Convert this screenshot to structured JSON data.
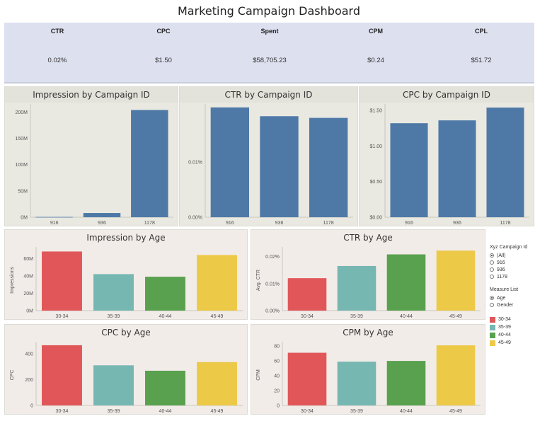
{
  "title": "Marketing Campaign Dashboard",
  "kpis": [
    {
      "label": "CTR",
      "value": "0.02%"
    },
    {
      "label": "CPC",
      "value": "$1.50"
    },
    {
      "label": "Spent",
      "value": "$58,705.23"
    },
    {
      "label": "CPM",
      "value": "$0.24"
    },
    {
      "label": "CPL",
      "value": "$51.72"
    }
  ],
  "filters": {
    "campaign_title": "Xyz Campaign Id",
    "campaign_options": [
      "(All)",
      "916",
      "936",
      "1178"
    ],
    "campaign_selected": "(All)",
    "measure_title": "Measure List",
    "measure_options": [
      "Age",
      "Gender"
    ],
    "measure_selected": "Age"
  },
  "legend": [
    {
      "label": "30-34",
      "color": "#e15759"
    },
    {
      "label": "35-39",
      "color": "#76b7b2"
    },
    {
      "label": "40-44",
      "color": "#59a14f"
    },
    {
      "label": "45-49",
      "color": "#edc948"
    }
  ],
  "chart_data": [
    {
      "type": "bar",
      "title": "Impression by Campaign ID",
      "categories": [
        "916",
        "936",
        "1178"
      ],
      "values": [
        500000,
        8000000,
        204000000
      ],
      "ylim": [
        0,
        210000000
      ],
      "ticks": [
        0,
        50000000,
        100000000,
        150000000,
        200000000
      ],
      "tick_labels": [
        "0M",
        "50M",
        "100M",
        "150M",
        "200M"
      ],
      "ylabel": "",
      "colors": [
        "#4e79a7",
        "#4e79a7",
        "#4e79a7"
      ]
    },
    {
      "type": "bar",
      "title": "CTR by Campaign ID",
      "categories": [
        "916",
        "936",
        "1178"
      ],
      "values": [
        0.0199,
        0.0183,
        0.018
      ],
      "ylim": [
        0,
        0.02
      ],
      "ticks": [
        0,
        0.01
      ],
      "tick_labels": [
        "0.00%",
        "0.01%"
      ],
      "ylabel": "",
      "colors": [
        "#4e79a7",
        "#4e79a7",
        "#4e79a7"
      ]
    },
    {
      "type": "bar",
      "title": "CPC by Campaign ID",
      "categories": [
        "916",
        "936",
        "1178"
      ],
      "values": [
        1.32,
        1.36,
        1.54
      ],
      "ylim": [
        0,
        1.55
      ],
      "ticks": [
        0,
        0.5,
        1.0,
        1.5
      ],
      "tick_labels": [
        "$0.00",
        "$0.50",
        "$1.00",
        "$1.50"
      ],
      "ylabel": "",
      "colors": [
        "#4e79a7",
        "#4e79a7",
        "#4e79a7"
      ]
    },
    {
      "type": "bar",
      "title": "Impression by Age",
      "categories": [
        "30-34",
        "35-39",
        "40-44",
        "45-49"
      ],
      "values": [
        68000000,
        42000000,
        39000000,
        64000000
      ],
      "ylim": [
        0,
        70000000
      ],
      "ticks": [
        0,
        20000000,
        40000000,
        60000000
      ],
      "tick_labels": [
        "0M",
        "20M",
        "40M",
        "60M"
      ],
      "ylabel": "Impressions",
      "colors": [
        "#e15759",
        "#76b7b2",
        "#59a14f",
        "#edc948"
      ]
    },
    {
      "type": "bar",
      "title": "CTR by Age",
      "categories": [
        "30-34",
        "35-39",
        "40-44",
        "45-49"
      ],
      "values": [
        0.012,
        0.0165,
        0.0208,
        0.0222
      ],
      "ylim": [
        0,
        0.0225
      ],
      "ticks": [
        0,
        0.01,
        0.02
      ],
      "tick_labels": [
        "0.00%",
        "0.01%",
        "0.02%"
      ],
      "ylabel": "Avg. CTR",
      "colors": [
        "#e15759",
        "#76b7b2",
        "#59a14f",
        "#edc948"
      ]
    },
    {
      "type": "bar",
      "title": "CPC by Age",
      "categories": [
        "30-34",
        "35-39",
        "40-44",
        "45-49"
      ],
      "values": [
        465,
        310,
        268,
        335
      ],
      "ylim": [
        0,
        470
      ],
      "ticks": [
        0,
        200,
        400
      ],
      "tick_labels": [
        "0",
        "200",
        "400"
      ],
      "ylabel": "CPC",
      "colors": [
        "#e15759",
        "#76b7b2",
        "#59a14f",
        "#edc948"
      ]
    },
    {
      "type": "bar",
      "title": "CPM by Age",
      "categories": [
        "30-34",
        "35-39",
        "40-44",
        "45-49"
      ],
      "values": [
        71,
        59,
        60,
        81
      ],
      "ylim": [
        0,
        82
      ],
      "ticks": [
        0,
        20,
        40,
        60,
        80
      ],
      "tick_labels": [
        "0",
        "20",
        "40",
        "60",
        "80"
      ],
      "ylabel": "CPM",
      "colors": [
        "#e15759",
        "#76b7b2",
        "#59a14f",
        "#edc948"
      ]
    }
  ]
}
